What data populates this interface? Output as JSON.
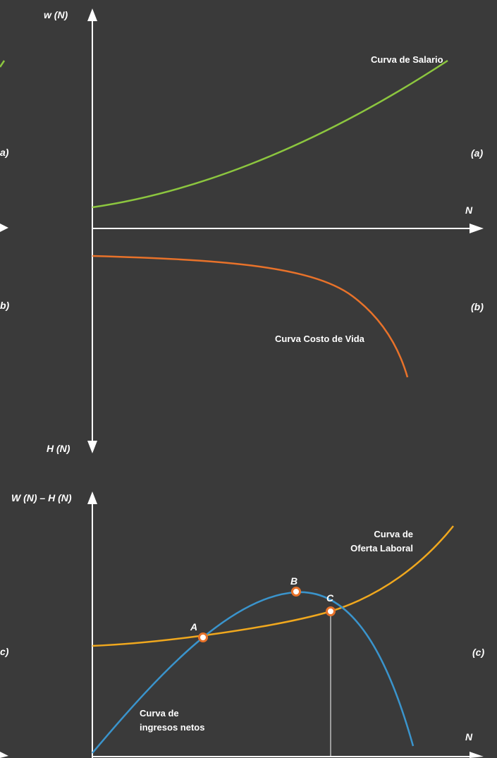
{
  "colors": {
    "background": "#3a3a3a",
    "axes": "#ffffff",
    "wage_curve": "#8cc63f",
    "cost_curve": "#e8722a",
    "supply_curve": "#f0a81e",
    "income_curve": "#3a94cc",
    "point_fill": "#ffffff",
    "point_stroke": "#e8722a"
  },
  "panel_top": {
    "y_axis_up_label": "w (N)",
    "y_axis_down_label": "H (N)",
    "x_axis_label": "N",
    "marker_a": "(a)",
    "marker_b": "(b)",
    "marker_a_left": "a)",
    "marker_b_left": "b)",
    "wage_curve_label": "Curva de Salario",
    "cost_curve_label": "Curva Costo de Vida"
  },
  "panel_bottom": {
    "y_axis_label": "W (N) – H (N)",
    "x_axis_label": "N",
    "marker_c": "(c)",
    "marker_c_left": "c)",
    "supply_curve_label_line1": "Curva de",
    "supply_curve_label_line2": "Oferta Laboral",
    "income_curve_label_line1": "Curva de",
    "income_curve_label_line2": "ingresos netos",
    "point_a": "A",
    "point_b": "B",
    "point_c": "C"
  }
}
